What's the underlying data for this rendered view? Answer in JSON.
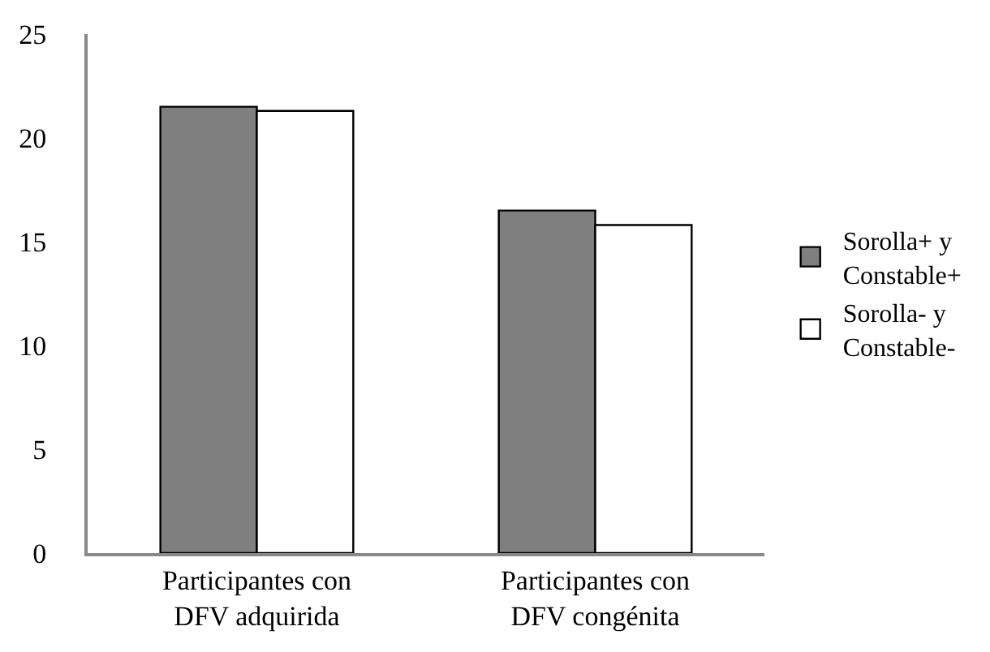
{
  "chart_data": {
    "type": "bar",
    "categories": [
      "Participantes con\nDFV adquirida",
      "Participantes con\nDFV congénita"
    ],
    "series": [
      {
        "name": "Sorolla+ y\nConstable+",
        "color": "#7f7f7f",
        "values": [
          21.5,
          16.5
        ]
      },
      {
        "name": "Sorolla- y\nConstable-",
        "color": "#ffffff",
        "values": [
          21.3,
          15.8
        ]
      }
    ],
    "ylim": [
      0,
      25
    ],
    "yticks": [
      0,
      5,
      10,
      15,
      20,
      25
    ],
    "legend": "right"
  }
}
